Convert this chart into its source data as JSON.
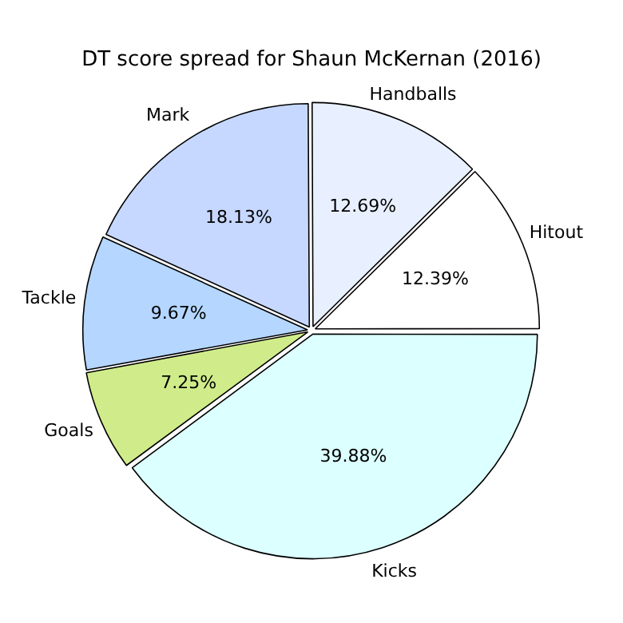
{
  "chart_data": {
    "type": "pie",
    "title": "DT score spread for Shaun McKernan (2016)",
    "categories": [
      "Kicks",
      "Goals",
      "Tackle",
      "Mark",
      "Handballs",
      "Hitout"
    ],
    "values": [
      39.88,
      7.25,
      9.67,
      18.13,
      12.69,
      12.39
    ],
    "colors": [
      "#dcffff",
      "#d0ec8a",
      "#b4d6ff",
      "#c6d8ff",
      "#e8f0ff",
      "#ffffff"
    ],
    "value_labels": [
      "39.88%",
      "7.25%",
      "9.67%",
      "18.13%",
      "12.69%",
      "12.39%"
    ],
    "legend": false
  }
}
